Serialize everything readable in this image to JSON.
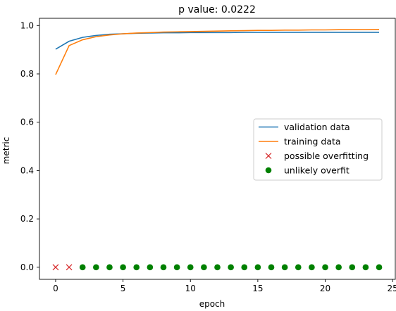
{
  "chart_data": {
    "type": "line",
    "title": "p value: 0.0222",
    "xlabel": "epoch",
    "ylabel": "metric",
    "xlim": [
      -1.2,
      25.2
    ],
    "ylim": [
      -0.05,
      1.03
    ],
    "xticks": [
      0,
      5,
      10,
      15,
      20,
      25
    ],
    "yticks": [
      0.0,
      0.2,
      0.4,
      0.6,
      0.8,
      1.0
    ],
    "xtick_labels": [
      "0",
      "5",
      "10",
      "15",
      "20",
      "25"
    ],
    "ytick_labels": [
      "0.0",
      "0.2",
      "0.4",
      "0.6",
      "0.8",
      "1.0"
    ],
    "grid": false,
    "legend_position": "center-right",
    "series": [
      {
        "name": "validation data",
        "kind": "line",
        "color": "#1f77b4",
        "x": [
          0,
          1,
          2,
          3,
          4,
          5,
          6,
          7,
          8,
          9,
          10,
          11,
          12,
          13,
          14,
          15,
          16,
          17,
          18,
          19,
          20,
          21,
          22,
          23,
          24
        ],
        "values": [
          0.902,
          0.935,
          0.951,
          0.959,
          0.964,
          0.966,
          0.968,
          0.969,
          0.97,
          0.97,
          0.971,
          0.971,
          0.971,
          0.971,
          0.972,
          0.972,
          0.972,
          0.972,
          0.972,
          0.972,
          0.972,
          0.972,
          0.972,
          0.972,
          0.972
        ]
      },
      {
        "name": "training data",
        "kind": "line",
        "color": "#ff7f0e",
        "x": [
          0,
          1,
          2,
          3,
          4,
          5,
          6,
          7,
          8,
          9,
          10,
          11,
          12,
          13,
          14,
          15,
          16,
          17,
          18,
          19,
          20,
          21,
          22,
          23,
          24
        ],
        "values": [
          0.797,
          0.917,
          0.941,
          0.954,
          0.961,
          0.966,
          0.969,
          0.971,
          0.973,
          0.974,
          0.975,
          0.976,
          0.977,
          0.978,
          0.979,
          0.98,
          0.98,
          0.981,
          0.981,
          0.982,
          0.982,
          0.983,
          0.983,
          0.983,
          0.984
        ]
      },
      {
        "name": "possible overfitting",
        "kind": "marker-x",
        "color": "#d62728",
        "x": [
          0,
          1
        ],
        "values": [
          0,
          0
        ]
      },
      {
        "name": "unlikely overfit",
        "kind": "marker-circle",
        "color": "#008000",
        "x": [
          2,
          3,
          4,
          5,
          6,
          7,
          8,
          9,
          10,
          11,
          12,
          13,
          14,
          15,
          16,
          17,
          18,
          19,
          20,
          21,
          22,
          23,
          24
        ],
        "values": [
          0,
          0,
          0,
          0,
          0,
          0,
          0,
          0,
          0,
          0,
          0,
          0,
          0,
          0,
          0,
          0,
          0,
          0,
          0,
          0,
          0,
          0,
          0
        ]
      }
    ]
  }
}
